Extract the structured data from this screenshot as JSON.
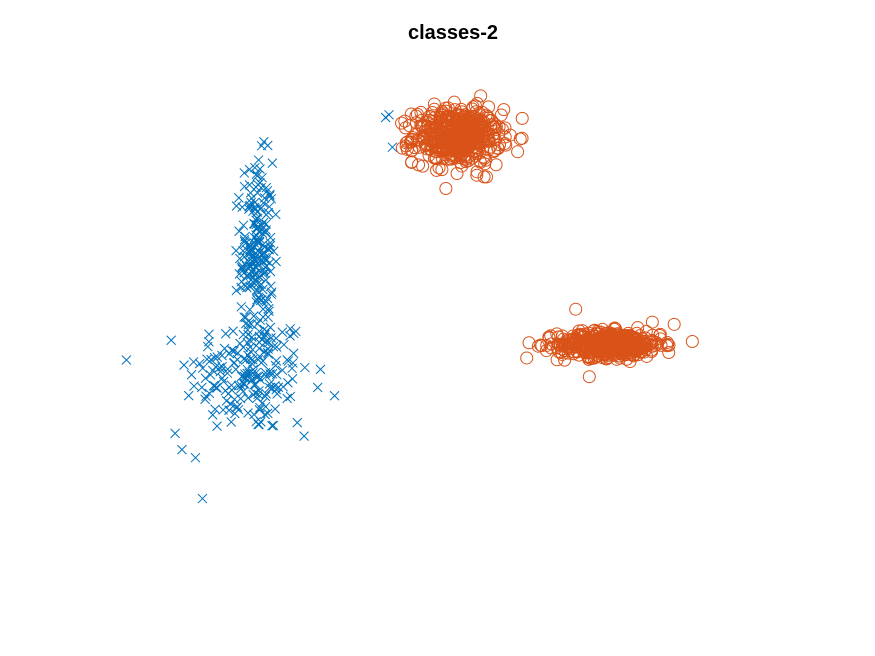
{
  "chart_data": {
    "type": "scatter",
    "title": "classes-2",
    "axes_visible": false,
    "grid": false,
    "xlim": [
      0,
      10
    ],
    "ylim": [
      0,
      10
    ],
    "series": [
      {
        "marker": "x",
        "color": "#0072BD",
        "clusters": [
          {
            "center": [
              2.0,
              4.0
            ],
            "std": [
              0.45,
              0.55
            ],
            "count": 180
          },
          {
            "center": [
              2.1,
              6.25
            ],
            "std": [
              0.12,
              0.85
            ],
            "count": 200
          }
        ],
        "outliers": [
          [
            1.0,
            2.6
          ],
          [
            1.1,
            3.6
          ],
          [
            2.3,
            4.0
          ],
          [
            2.8,
            2.85
          ],
          [
            0.9,
            2.9
          ],
          [
            1.2,
            2.45
          ],
          [
            2.7,
            3.1
          ],
          [
            3.0,
            3.75
          ],
          [
            4.0,
            8.75
          ],
          [
            4.1,
            8.2
          ],
          [
            4.05,
            8.8
          ]
        ]
      },
      {
        "marker": "o",
        "color": "#D95319",
        "clusters": [
          {
            "center": [
              5.05,
              8.4
            ],
            "std": [
              0.32,
              0.25
            ],
            "count": 500
          },
          {
            "center": [
              7.3,
              4.55
            ],
            "std": [
              0.38,
              0.12
            ],
            "count": 500
          }
        ],
        "outliers": [
          [
            8.25,
            4.92
          ],
          [
            6.8,
            5.2
          ],
          [
            5.4,
            9.15
          ],
          [
            4.35,
            8.6
          ],
          [
            5.45,
            7.65
          ],
          [
            7.0,
            3.95
          ]
        ]
      }
    ]
  }
}
